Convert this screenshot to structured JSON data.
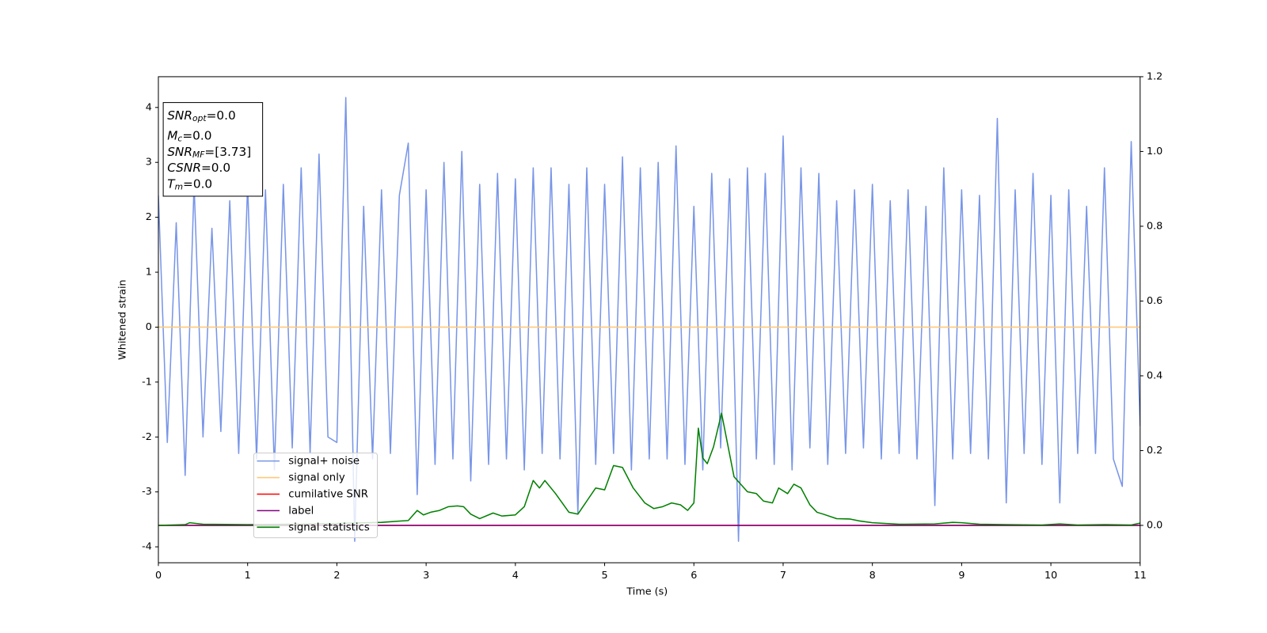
{
  "chart_data": {
    "type": "line",
    "xlabel": "Time (s)",
    "ylabel": "Whitened strain",
    "xlim": [
      0,
      11
    ],
    "xticks": [
      0,
      1,
      2,
      3,
      4,
      5,
      6,
      7,
      8,
      9,
      10,
      11
    ],
    "ylim": [
      -4.29,
      4.56
    ],
    "yticks": [
      -4,
      -3,
      -2,
      -1,
      0,
      1,
      2,
      3,
      4
    ],
    "y2lim": [
      -0.1,
      1.2
    ],
    "y2ticks": [
      {
        "value": 0,
        "label": "0.0"
      },
      {
        "value": 0.2,
        "label": "0.2"
      },
      {
        "value": 0.4,
        "label": "0.4"
      },
      {
        "value": 0.6,
        "label": "0.6"
      },
      {
        "value": 0.8,
        "label": "0.8"
      },
      {
        "value": 1.0,
        "label": "1.0"
      },
      {
        "value": 1.2,
        "label": "1.2"
      }
    ],
    "annotation": [
      {
        "name": "SNR",
        "sub": "opt",
        "rest": "=0.0"
      },
      {
        "name": "M",
        "sub": "c",
        "rest": "=0.0"
      },
      {
        "name": "SNR",
        "sub": "MF",
        "rest": "=[3.73]"
      },
      {
        "name": "CSNR",
        "rest": "=0.0"
      },
      {
        "name": "T",
        "sub": "m",
        "rest": "=0.0"
      }
    ],
    "series": [
      {
        "name": "signal+ noise",
        "color": "#7895e8",
        "x": [
          0,
          0.1,
          0.2,
          0.3,
          0.4,
          0.5,
          0.6,
          0.7,
          0.8,
          0.9,
          1,
          1.1,
          1.2,
          1.3,
          1.4,
          1.5,
          1.6,
          1.7,
          1.8,
          1.9,
          2,
          2.1,
          2.2,
          2.3,
          2.4,
          2.5,
          2.6,
          2.7,
          2.8,
          2.9,
          3,
          3.1,
          3.2,
          3.3,
          3.4,
          3.5,
          3.6,
          3.7,
          3.8,
          3.9,
          4,
          4.1,
          4.2,
          4.3,
          4.4,
          4.5,
          4.6,
          4.7,
          4.8,
          4.9,
          5,
          5.1,
          5.2,
          5.3,
          5.4,
          5.5,
          5.6,
          5.7,
          5.8,
          5.9,
          6,
          6.1,
          6.2,
          6.3,
          6.4,
          6.5,
          6.6,
          6.7,
          6.8,
          6.9,
          7,
          7.1,
          7.2,
          7.3,
          7.4,
          7.5,
          7.6,
          7.7,
          7.8,
          7.9,
          8,
          8.1,
          8.2,
          8.3,
          8.4,
          8.5,
          8.6,
          8.7,
          8.8,
          8.9,
          9,
          9.1,
          9.2,
          9.3,
          9.4,
          9.5,
          9.6,
          9.7,
          9.8,
          9.9,
          10,
          10.1,
          10.2,
          10.3,
          10.4,
          10.5,
          10.6,
          10.7,
          10.8,
          10.9,
          11
        ],
        "values": [
          2.4,
          -2.1,
          1.9,
          -2.7,
          2.6,
          -2.0,
          1.8,
          -1.9,
          2.3,
          -2.3,
          2.6,
          -2.4,
          2.5,
          -2.6,
          2.6,
          -2.2,
          2.9,
          -2.3,
          3.15,
          -2.0,
          -2.1,
          4.18,
          -3.9,
          2.2,
          -2.4,
          2.5,
          -2.3,
          2.4,
          3.35,
          -3.05,
          2.5,
          -2.5,
          3.0,
          -2.4,
          3.2,
          -2.8,
          2.6,
          -2.5,
          2.8,
          -2.4,
          2.7,
          -2.6,
          2.9,
          -2.3,
          2.9,
          -2.4,
          2.6,
          -3.4,
          2.9,
          -2.5,
          2.6,
          -2.3,
          3.1,
          -2.6,
          2.9,
          -2.4,
          3.0,
          -2.4,
          3.3,
          -2.5,
          2.2,
          -2.6,
          2.8,
          -2.2,
          2.7,
          -3.9,
          2.9,
          -2.4,
          2.8,
          -2.5,
          3.48,
          -2.6,
          2.9,
          -2.2,
          2.8,
          -2.5,
          2.3,
          -2.3,
          2.5,
          -2.2,
          2.6,
          -2.4,
          2.3,
          -2.3,
          2.5,
          -2.4,
          2.2,
          -3.25,
          2.9,
          -2.4,
          2.5,
          -2.3,
          2.4,
          -2.4,
          3.8,
          -3.2,
          2.5,
          -2.3,
          2.8,
          -2.5,
          2.4,
          -3.2,
          2.5,
          -2.3,
          2.2,
          -2.3,
          2.9,
          -2.4,
          -2.9,
          3.38,
          -1.8
        ]
      },
      {
        "name": "signal only",
        "color": "#ffc97a",
        "x": [
          0,
          11
        ],
        "values": [
          0,
          0
        ]
      },
      {
        "name": "cumilative SNR",
        "color": "#ff0000",
        "axis": "y2",
        "x": [
          0,
          11
        ],
        "values": [
          0,
          0
        ]
      },
      {
        "name": "label",
        "color": "#800080",
        "axis": "y2",
        "x": [
          0,
          11
        ],
        "values": [
          0,
          0
        ]
      },
      {
        "name": "signal statistics",
        "color": "#008000",
        "axis": "y2",
        "x": [
          0,
          0.3,
          0.35,
          0.5,
          1,
          1.5,
          2,
          2.5,
          2.8,
          2.9,
          2.97,
          3.05,
          3.15,
          3.25,
          3.35,
          3.42,
          3.5,
          3.6,
          3.75,
          3.85,
          4.0,
          4.1,
          4.2,
          4.27,
          4.33,
          4.45,
          4.6,
          4.7,
          4.8,
          4.9,
          5.0,
          5.1,
          5.2,
          5.32,
          5.45,
          5.55,
          5.65,
          5.75,
          5.85,
          5.93,
          6.0,
          6.05,
          6.1,
          6.15,
          6.22,
          6.31,
          6.45,
          6.6,
          6.7,
          6.78,
          6.88,
          6.95,
          7.05,
          7.12,
          7.2,
          7.3,
          7.38,
          7.45,
          7.6,
          7.75,
          7.85,
          8.0,
          8.3,
          8.7,
          8.9,
          9.0,
          9.2,
          9.5,
          9.9,
          10.1,
          10.3,
          10.6,
          10.9,
          11
        ],
        "values": [
          0,
          0.002,
          0.007,
          0.003,
          0.002,
          0.003,
          0.005,
          0.008,
          0.013,
          0.04,
          0.028,
          0.035,
          0.04,
          0.05,
          0.052,
          0.05,
          0.03,
          0.018,
          0.033,
          0.025,
          0.028,
          0.05,
          0.12,
          0.1,
          0.12,
          0.085,
          0.035,
          0.03,
          0.065,
          0.1,
          0.095,
          0.16,
          0.155,
          0.1,
          0.06,
          0.045,
          0.05,
          0.06,
          0.055,
          0.04,
          0.06,
          0.26,
          0.18,
          0.165,
          0.21,
          0.3,
          0.13,
          0.09,
          0.085,
          0.065,
          0.06,
          0.1,
          0.085,
          0.11,
          0.1,
          0.055,
          0.035,
          0.03,
          0.018,
          0.017,
          0.012,
          0.007,
          0.003,
          0.004,
          0.008,
          0.007,
          0.003,
          0.002,
          0.001,
          0.004,
          0.001,
          0.002,
          0.001,
          0.006
        ]
      }
    ]
  }
}
